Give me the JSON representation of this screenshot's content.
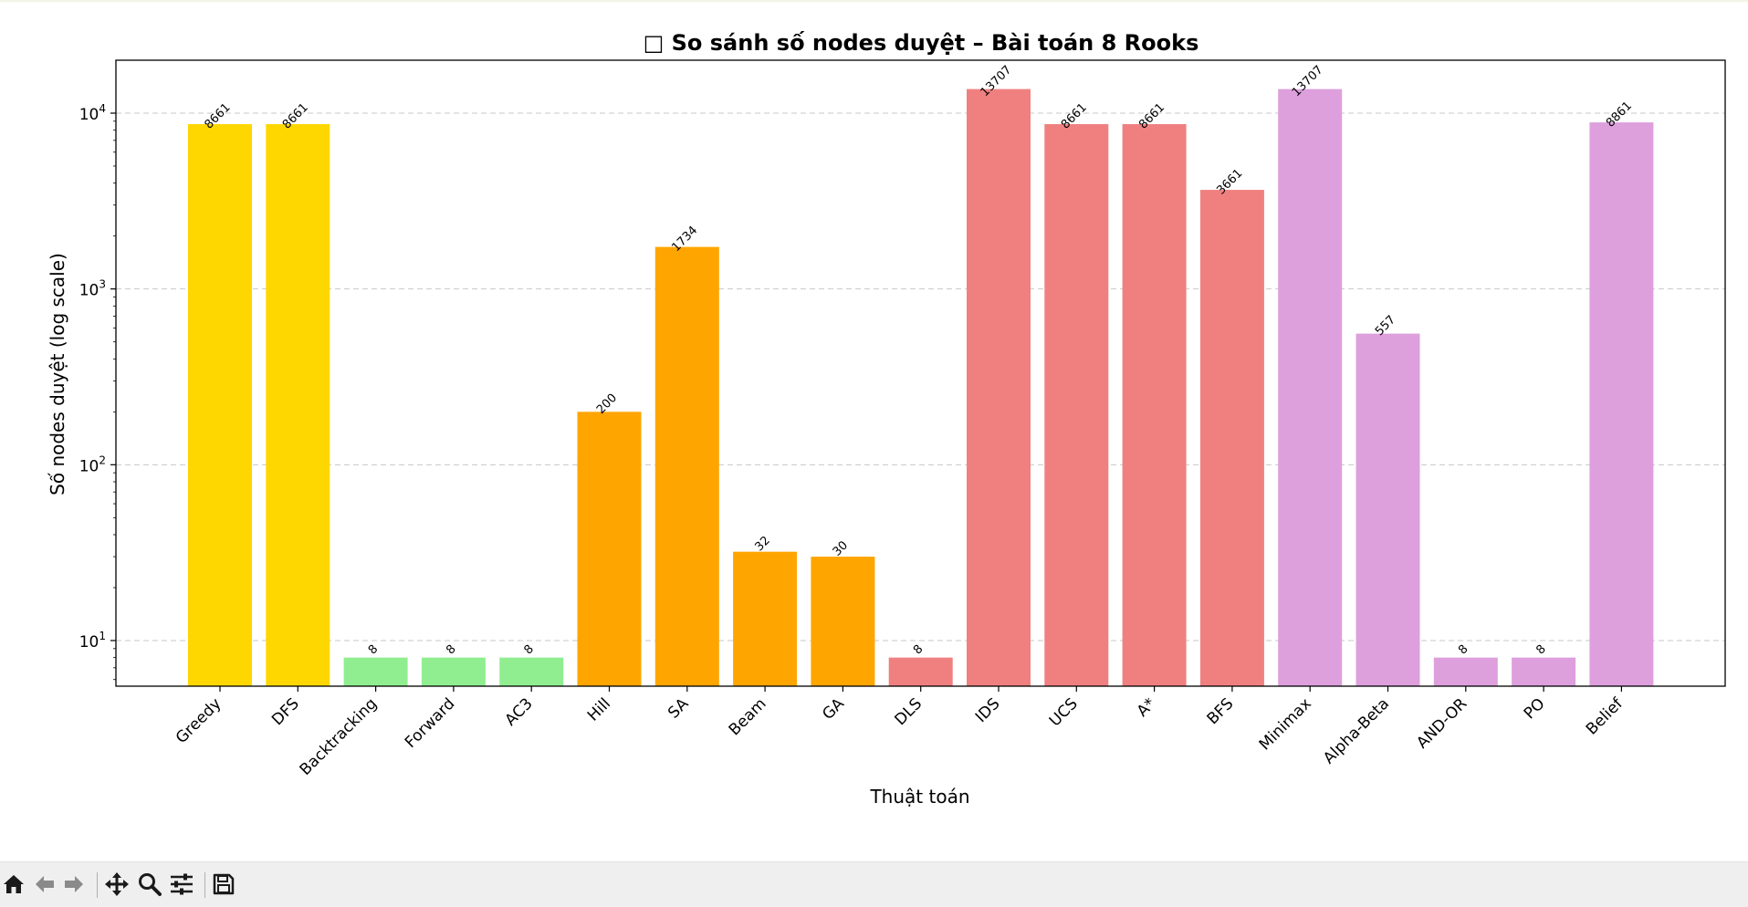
{
  "toolbar": {
    "buttons": [
      {
        "name": "home-icon",
        "enabled": true
      },
      {
        "name": "back-arrow-icon",
        "enabled": false
      },
      {
        "name": "forward-arrow-icon",
        "enabled": false
      },
      {
        "name": "pan-move-icon",
        "enabled": true
      },
      {
        "name": "zoom-magnifier-icon",
        "enabled": true
      },
      {
        "name": "configure-subplots-icon",
        "enabled": true
      },
      {
        "name": "save-floppy-icon",
        "enabled": true
      }
    ]
  },
  "chart_data": {
    "type": "bar",
    "title": "□ So sánh số nodes duyệt – Bài toán 8 Rooks",
    "xlabel": "Thuật toán",
    "ylabel": "Số nodes duyệt (log scale)",
    "yscale": "log",
    "ylim": [
      5.5,
      20000
    ],
    "yticks": [
      10,
      100,
      1000,
      10000
    ],
    "ytick_exponents": [
      "1",
      "2",
      "3",
      "4"
    ],
    "grid": "y-dashed",
    "categories": [
      "Greedy",
      "DFS",
      "Backtracking",
      "Forward",
      "AC3",
      "Hill",
      "SA",
      "Beam",
      "GA",
      "DLS",
      "IDS",
      "UCS",
      "A*",
      "BFS",
      "Minimax",
      "Alpha-Beta",
      "AND-OR",
      "PO",
      "Belief"
    ],
    "values": [
      8661,
      8661,
      8,
      8,
      8,
      200,
      1734,
      32,
      30,
      8,
      13707,
      8661,
      8661,
      3661,
      13707,
      557,
      8,
      8,
      8861
    ],
    "data_labels": [
      "8661",
      "8661",
      "8",
      "8",
      "8",
      "200",
      "1734",
      "32",
      "30",
      "8",
      "13707",
      "8661",
      "8661",
      "3661",
      "13707",
      "557",
      "8",
      "8",
      "8861"
    ],
    "colors": [
      "#ffd700",
      "#ffd700",
      "#90ee90",
      "#90ee90",
      "#90ee90",
      "#ffa500",
      "#ffa500",
      "#ffa500",
      "#ffa500",
      "#f08080",
      "#f08080",
      "#f08080",
      "#f08080",
      "#f08080",
      "#dda0dd",
      "#dda0dd",
      "#dda0dd",
      "#dda0dd",
      "#dda0dd"
    ]
  }
}
